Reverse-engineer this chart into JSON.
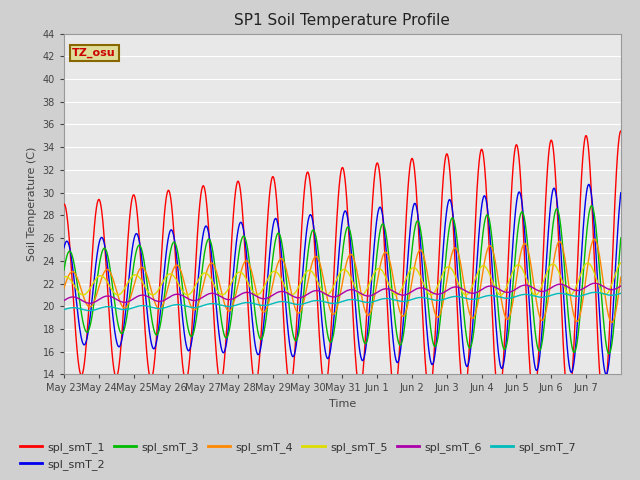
{
  "title": "SP1 Soil Temperature Profile",
  "xlabel": "Time",
  "ylabel": "Soil Temperature (C)",
  "ylim": [
    14,
    44
  ],
  "yticks": [
    14,
    16,
    18,
    20,
    22,
    24,
    26,
    28,
    30,
    32,
    34,
    36,
    38,
    40,
    42,
    44
  ],
  "series_colors": {
    "spl_smT_1": "#ff0000",
    "spl_smT_2": "#0000ee",
    "spl_smT_3": "#00bb00",
    "spl_smT_4": "#ff8800",
    "spl_smT_5": "#dddd00",
    "spl_smT_6": "#aa00aa",
    "spl_smT_7": "#00bbbb"
  },
  "tz_label": "TZ_osu",
  "tz_label_color": "#cc0000",
  "tz_box_facecolor": "#dddd99",
  "tz_box_edgecolor": "#886600",
  "plot_bg": "#e8e8e8",
  "fig_bg": "#d0d0d0",
  "grid_color": "#ffffff",
  "n_days": 16,
  "legend_order": [
    "spl_smT_1",
    "spl_smT_2",
    "spl_smT_3",
    "spl_smT_4",
    "spl_smT_5",
    "spl_smT_6",
    "spl_smT_7"
  ]
}
